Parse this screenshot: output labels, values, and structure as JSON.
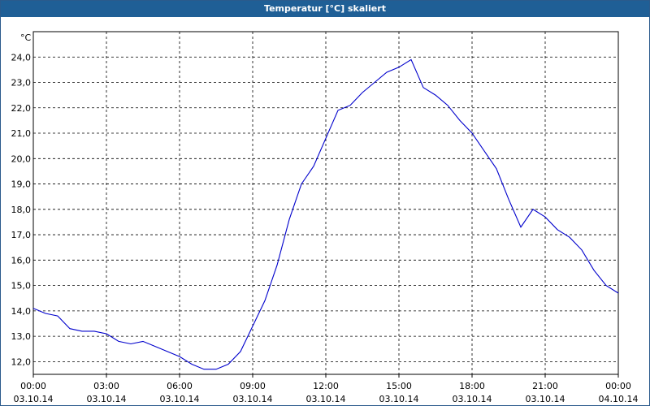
{
  "window": {
    "title": "Temperatur [°C] skaliert"
  },
  "colors": {
    "title_bar": "#1f5f96",
    "line": "#0000cc",
    "grid": "#000000"
  },
  "chart_data": {
    "type": "line",
    "title": "Temperatur [°C] skaliert",
    "y_unit": "°C",
    "ylim": [
      11.5,
      25.0
    ],
    "xlim": [
      "2014-10-03 00:00",
      "2014-10-04 00:00"
    ],
    "grid": true,
    "y_ticks": [
      "12,0",
      "13,0",
      "14,0",
      "15,0",
      "16,0",
      "17,0",
      "18,0",
      "19,0",
      "20,0",
      "21,0",
      "22,0",
      "23,0",
      "24,0"
    ],
    "x_ticks": [
      {
        "time": "00:00",
        "date": "03.10.14"
      },
      {
        "time": "03:00",
        "date": "03.10.14"
      },
      {
        "time": "06:00",
        "date": "03.10.14"
      },
      {
        "time": "09:00",
        "date": "03.10.14"
      },
      {
        "time": "12:00",
        "date": "03.10.14"
      },
      {
        "time": "15:00",
        "date": "03.10.14"
      },
      {
        "time": "18:00",
        "date": "03.10.14"
      },
      {
        "time": "21:00",
        "date": "03.10.14"
      },
      {
        "time": "00:00",
        "date": "04.10.14"
      }
    ],
    "series": [
      {
        "x": [
          "00:00",
          "00:30",
          "01:00",
          "01:30",
          "02:00",
          "02:30",
          "03:00",
          "03:30",
          "04:00",
          "04:30",
          "05:00",
          "05:30",
          "06:00",
          "06:30",
          "07:00",
          "07:30",
          "08:00",
          "08:30",
          "09:00",
          "09:30",
          "10:00",
          "10:30",
          "11:00",
          "11:30",
          "12:00",
          "12:30",
          "13:00",
          "13:30",
          "14:00",
          "14:30",
          "15:00",
          "15:30",
          "16:00",
          "16:30",
          "17:00",
          "17:30",
          "18:00",
          "18:30",
          "19:00",
          "19:30",
          "20:00",
          "20:30",
          "21:00",
          "21:30",
          "22:00",
          "22:30",
          "23:00",
          "23:30",
          "24:00"
        ],
        "values": [
          14.1,
          13.9,
          13.8,
          13.3,
          13.2,
          13.2,
          13.1,
          12.8,
          12.7,
          12.8,
          12.6,
          12.4,
          12.2,
          11.9,
          11.7,
          11.7,
          11.9,
          12.4,
          13.4,
          14.4,
          15.8,
          17.6,
          19.0,
          19.7,
          20.8,
          21.9,
          22.1,
          22.6,
          23.0,
          23.4,
          23.6,
          23.9,
          22.8,
          22.5,
          22.1,
          21.5,
          21.0,
          20.3,
          19.6,
          18.4,
          17.3,
          18.0,
          17.7,
          17.2,
          16.9,
          16.4,
          15.6,
          15.0,
          14.7
        ]
      }
    ]
  }
}
